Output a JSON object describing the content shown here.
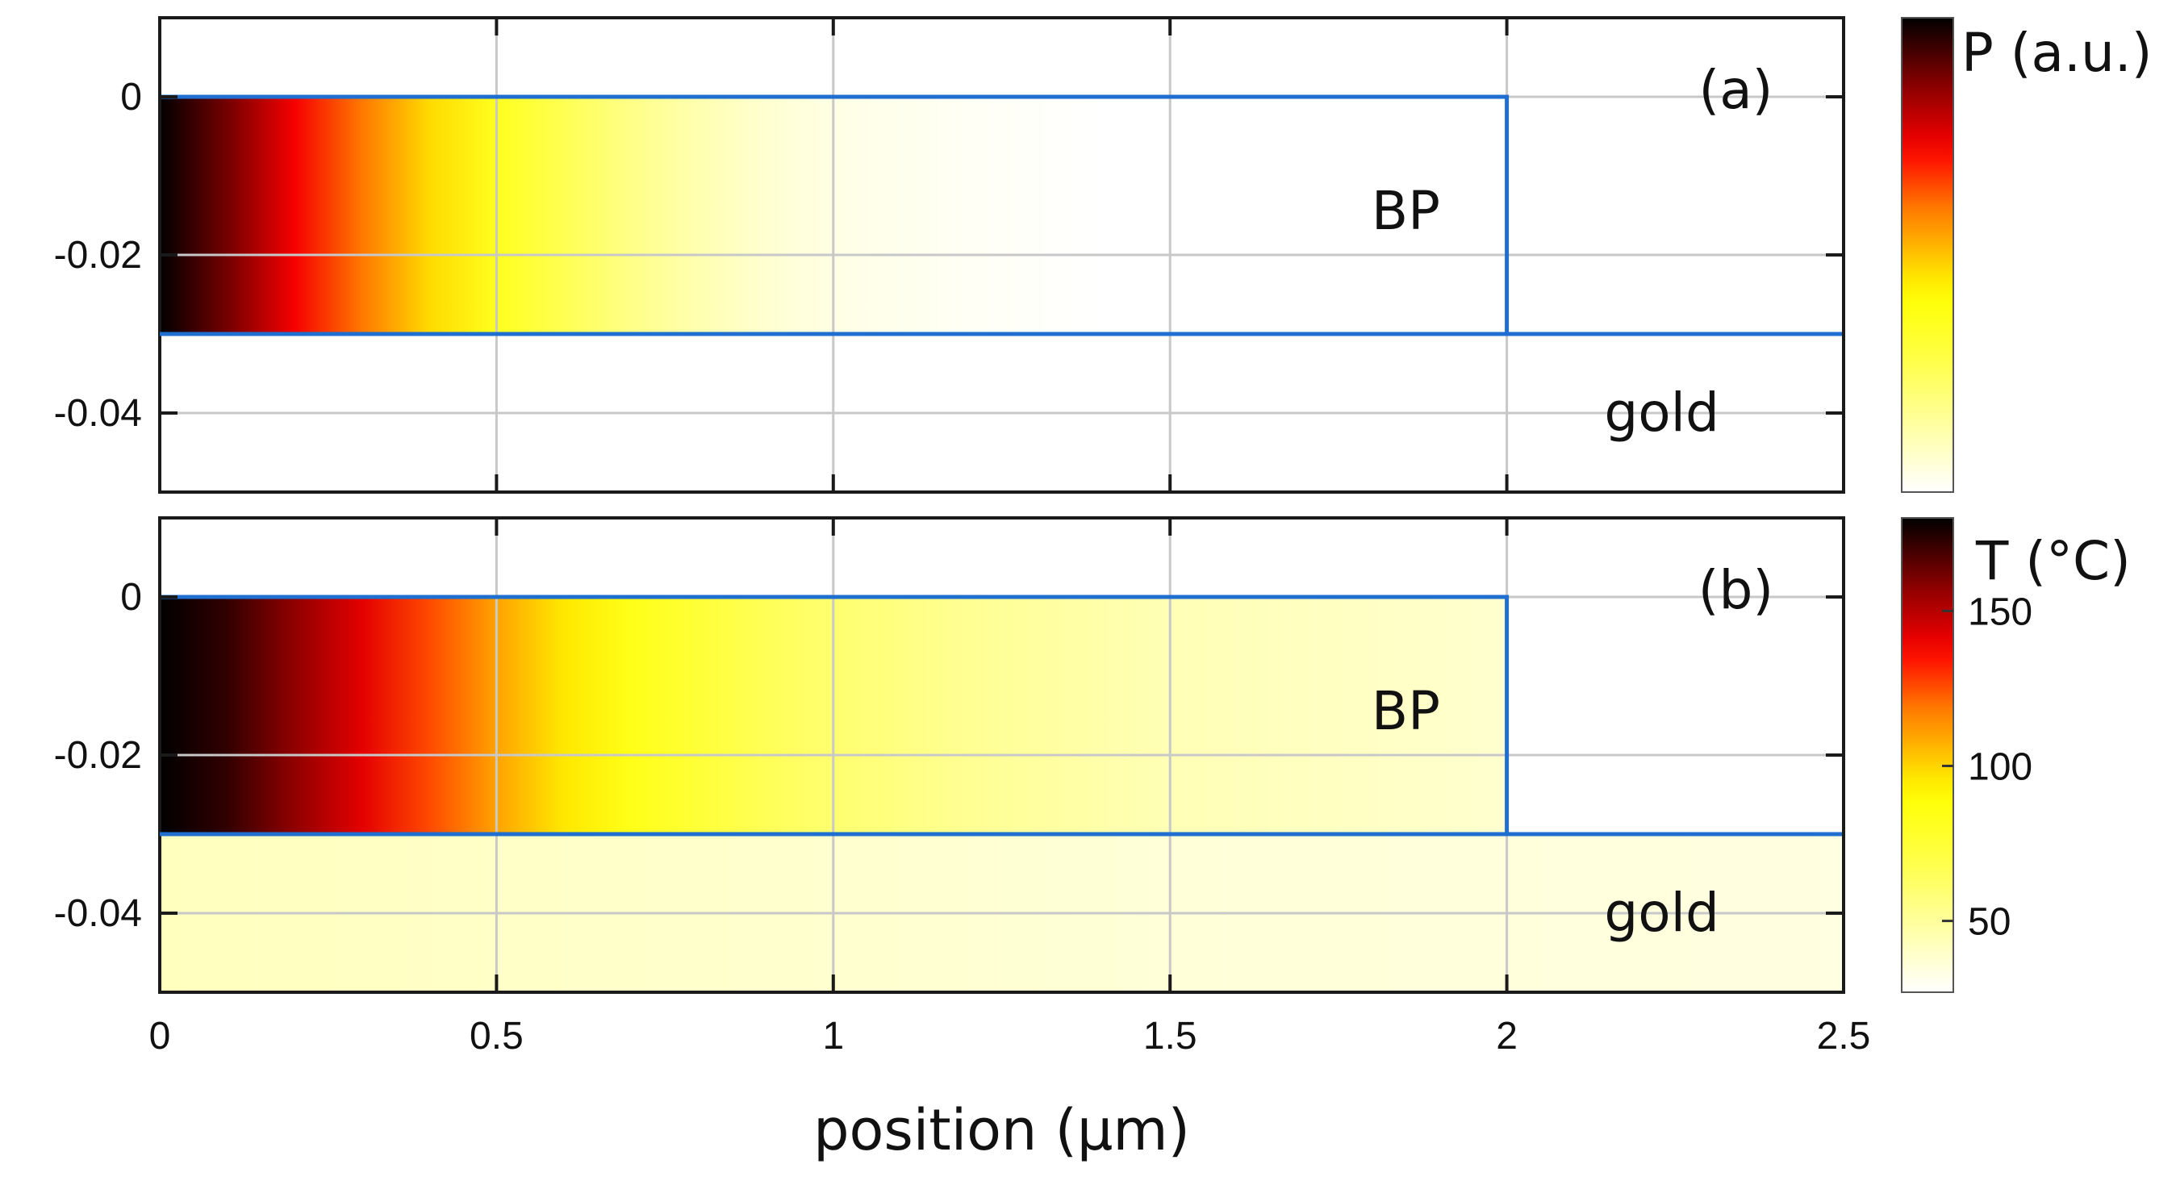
{
  "chart_data": [
    {
      "type": "heatmap",
      "panel_label": "(a)",
      "quantity": "P",
      "colorbar_title": "P (a.u.)",
      "colorbar_ticks": [],
      "colormap": "hot",
      "xlim": [
        0,
        2.5
      ],
      "ylim": [
        -0.05,
        0.01
      ],
      "xticks": [
        0,
        0.5,
        1,
        1.5,
        2,
        2.5
      ],
      "xtick_labels": [
        "0",
        "0.5",
        "1",
        "1.5",
        "2",
        "2.5"
      ],
      "yticks": [
        0,
        -0.02,
        -0.04
      ],
      "ytick_labels": [
        "0",
        "-0.02",
        "-0.04"
      ],
      "grid": true,
      "regions": [
        {
          "name": "BP",
          "label": "BP",
          "x": [
            0,
            2
          ],
          "y": [
            -0.03,
            0
          ]
        },
        {
          "name": "gold",
          "label": "gold",
          "x": [
            0,
            2.5
          ],
          "y": [
            -0.05,
            -0.03
          ]
        }
      ],
      "field_profile": {
        "region": "BP",
        "x": [
          0,
          0.1,
          0.2,
          0.3,
          0.4,
          0.5,
          0.6,
          0.7,
          0.8,
          0.9,
          1.0,
          1.2,
          1.4,
          2.0
        ],
        "relative_value": [
          1.0,
          0.88,
          0.73,
          0.6,
          0.47,
          0.36,
          0.26,
          0.18,
          0.12,
          0.07,
          0.04,
          0.015,
          0.0,
          0.0
        ]
      },
      "gold_relative_value": 0.0
    },
    {
      "type": "heatmap",
      "panel_label": "(b)",
      "quantity": "T",
      "colorbar_title": "T (°C)",
      "colorbar_range": [
        27,
        180
      ],
      "colorbar_ticks": [
        50,
        100,
        150
      ],
      "colorbar_tick_labels": [
        "50",
        "100",
        "150"
      ],
      "colormap": "hot",
      "xlim": [
        0,
        2.5
      ],
      "ylim": [
        -0.05,
        0.01
      ],
      "xticks": [
        0,
        0.5,
        1,
        1.5,
        2,
        2.5
      ],
      "xtick_labels": [
        "0",
        "0.5",
        "1",
        "1.5",
        "2",
        "2.5"
      ],
      "yticks": [
        0,
        -0.02,
        -0.04
      ],
      "ytick_labels": [
        "0",
        "-0.02",
        "-0.04"
      ],
      "grid": true,
      "regions": [
        {
          "name": "BP",
          "label": "BP",
          "x": [
            0,
            2
          ],
          "y": [
            -0.03,
            0
          ]
        },
        {
          "name": "gold",
          "label": "gold",
          "x": [
            0,
            2.5
          ],
          "y": [
            -0.05,
            -0.03
          ]
        }
      ],
      "field_profile": {
        "region": "BP",
        "x": [
          0,
          0.1,
          0.2,
          0.3,
          0.4,
          0.5,
          0.6,
          0.7,
          0.8,
          0.9,
          1.0,
          1.2,
          1.5,
          2.0
        ],
        "value": [
          180,
          172,
          157,
          142,
          126,
          110,
          96,
          84,
          74,
          66,
          60,
          52,
          44,
          38
        ]
      },
      "gold_profile": {
        "x": [
          0,
          0.5,
          1.0,
          1.5,
          2.0,
          2.5
        ],
        "value": [
          42,
          40,
          38,
          36,
          35,
          34
        ]
      }
    }
  ],
  "xlabel": "position (μm)",
  "colors": {
    "region_outline": "#1f6fd0",
    "frame": "#1a1a1a",
    "grid": "#c8c8c8",
    "background": "#ffffff"
  }
}
